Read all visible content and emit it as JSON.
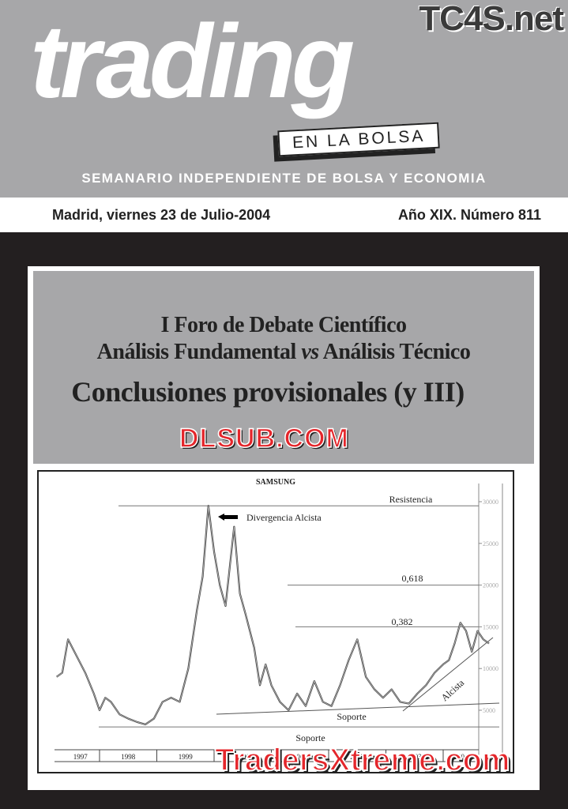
{
  "masthead": {
    "logo": "trading",
    "logo_sub": "EN LA BOLSA",
    "watermark_top": "TC4S.net",
    "subtitle": "SEMANARIO INDEPENDIENTE DE BOLSA Y ECONOMIA",
    "date": "Madrid, viernes 23 de Julio-2004",
    "issue": "Año XIX. Número 811"
  },
  "cover": {
    "title_line1": "I Foro de Debate Científico",
    "title_line2_a": "Análisis Fundamental ",
    "title_line2_vs": "vs",
    "title_line2_b": " Análisis Técnico",
    "title_line3": "Conclusiones provisionales (y III)",
    "watermark_mid": "DLSUB.COM",
    "watermark_bottom": "TradersXtreme.com"
  },
  "chart_data": {
    "type": "line",
    "title": "SAMSUNG",
    "x_tick_labels": [
      "1997",
      "1998",
      "1999",
      "2000",
      "2001",
      "2002",
      "2003",
      "2004"
    ],
    "y_ticks": [
      5000,
      10000,
      15000,
      20000,
      25000,
      30000
    ],
    "ylim": [
      0,
      32000
    ],
    "xlim": [
      1997.2,
      2005.0
    ],
    "y_axis_side": "right",
    "series": [
      {
        "x": [
          1997.25,
          1997.35,
          1997.45,
          1997.6,
          1997.75,
          1997.9,
          1998.0,
          1998.1,
          1998.2,
          1998.35,
          1998.5,
          1998.65,
          1998.8,
          1998.95,
          1999.1,
          1999.25,
          1999.4,
          1999.55,
          1999.7,
          1999.8,
          1999.9,
          2000.0,
          2000.1,
          2000.2,
          2000.35,
          2000.45,
          2000.55,
          2000.7,
          2000.8,
          2000.9,
          2001.0,
          2001.15,
          2001.3,
          2001.45,
          2001.6,
          2001.75,
          2001.9,
          2002.05,
          2002.2,
          2002.35,
          2002.5,
          2002.65,
          2002.8,
          2002.95,
          2003.1,
          2003.25,
          2003.4,
          2003.55,
          2003.7,
          2003.85,
          2004.0,
          2004.1,
          2004.2,
          2004.3,
          2004.4,
          2004.5,
          2004.6,
          2004.7,
          2004.8
        ],
        "values": [
          9000,
          9500,
          13500,
          11500,
          9500,
          7000,
          5000,
          6500,
          6000,
          4500,
          4000,
          3600,
          3300,
          4000,
          6000,
          6500,
          6000,
          10000,
          17000,
          21000,
          29500,
          24000,
          20000,
          17500,
          27000,
          19000,
          16500,
          12500,
          8000,
          10500,
          8000,
          6000,
          5000,
          7000,
          5500,
          8500,
          6000,
          5500,
          8000,
          11000,
          13500,
          9000,
          7500,
          6500,
          7500,
          6000,
          5800,
          7000,
          8000,
          9500,
          10500,
          11000,
          13000,
          15500,
          14500,
          12000,
          14500,
          13500,
          13000
        ]
      }
    ],
    "annotations": [
      "Resistencia",
      "Divergencia Alcista",
      "0,618",
      "0,382",
      "Alcista",
      "Soporte",
      "Soporte"
    ],
    "reference_lines": [
      {
        "label": "Resistencia",
        "y": 29500
      },
      {
        "label": "0,618",
        "y": 20000
      },
      {
        "label": "0,382",
        "y": 15000
      },
      {
        "label": "Soporte",
        "y": 3000
      }
    ],
    "grid": false
  }
}
